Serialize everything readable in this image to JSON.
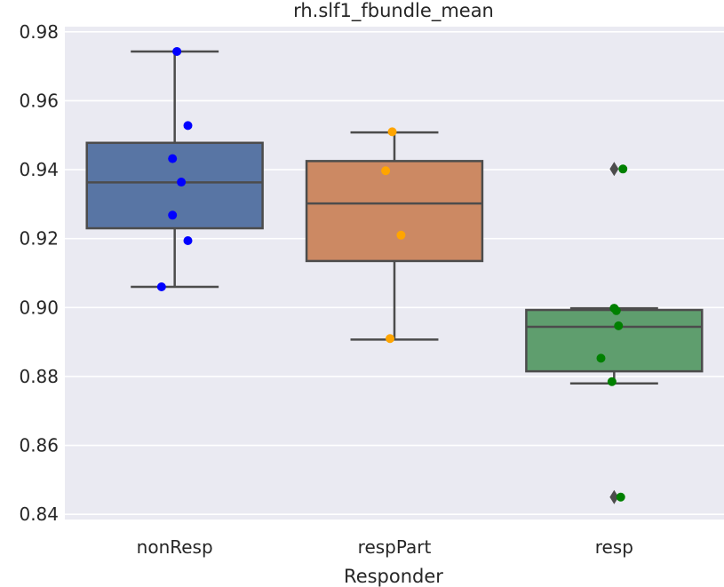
{
  "chart_data": {
    "type": "box",
    "title": "rh.slf1_fbundle_mean",
    "xlabel": "Responder",
    "ylabel": "",
    "ylim": [
      0.8385,
      0.9815
    ],
    "yticks": [
      0.84,
      0.86,
      0.88,
      0.9,
      0.92,
      0.94,
      0.96,
      0.98
    ],
    "ytick_labels": [
      "0.84",
      "0.86",
      "0.88",
      "0.90",
      "0.92",
      "0.94",
      "0.96",
      "0.98"
    ],
    "grid": true,
    "categories": [
      "nonResp",
      "respPart",
      "resp"
    ],
    "series": [
      {
        "category": "nonResp",
        "box_color": "#5875a4",
        "point_color": "#0000ff",
        "whisker_low": 0.906,
        "q1": 0.923,
        "median": 0.9363,
        "q3": 0.9478,
        "whisker_high": 0.9743,
        "outliers": [],
        "points": [
          {
            "offset": 0.01,
            "y": 0.9743
          },
          {
            "offset": 0.06,
            "y": 0.9528
          },
          {
            "offset": -0.01,
            "y": 0.9432
          },
          {
            "offset": 0.03,
            "y": 0.9364
          },
          {
            "offset": -0.01,
            "y": 0.9268
          },
          {
            "offset": 0.06,
            "y": 0.9194
          },
          {
            "offset": -0.06,
            "y": 0.906
          }
        ]
      },
      {
        "category": "respPart",
        "box_color": "#cc8963",
        "point_color": "#ffa500",
        "whisker_low": 0.8907,
        "q1": 0.9135,
        "median": 0.9302,
        "q3": 0.9425,
        "whisker_high": 0.9508,
        "outliers": [],
        "points": [
          {
            "offset": -0.01,
            "y": 0.951
          },
          {
            "offset": -0.04,
            "y": 0.9397
          },
          {
            "offset": 0.03,
            "y": 0.921
          },
          {
            "offset": -0.02,
            "y": 0.891
          }
        ]
      },
      {
        "category": "resp",
        "box_color": "#5f9e6e",
        "point_color": "#008000",
        "whisker_low": 0.878,
        "q1": 0.8815,
        "median": 0.8944,
        "q3": 0.8993,
        "whisker_high": 0.8998,
        "outliers": [
          0.9402,
          0.845
        ],
        "points": [
          {
            "offset": 0.04,
            "y": 0.9402
          },
          {
            "offset": 0.0,
            "y": 0.8998
          },
          {
            "offset": 0.01,
            "y": 0.8991
          },
          {
            "offset": 0.02,
            "y": 0.8947
          },
          {
            "offset": -0.06,
            "y": 0.8853
          },
          {
            "offset": -0.01,
            "y": 0.8785
          },
          {
            "offset": 0.03,
            "y": 0.845
          }
        ]
      }
    ]
  },
  "colors": {
    "plot_background": "#eaeaf2",
    "grid": "#ffffff",
    "line": "#4c4c4c",
    "text": "#262626"
  }
}
